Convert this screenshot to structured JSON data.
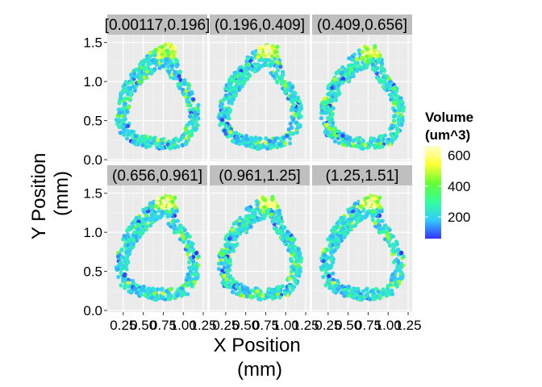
{
  "chart_data": {
    "type": "scatter",
    "title": "",
    "xlabel": "X Position\n(mm)",
    "ylabel": "Y Position\n(mm)",
    "xlim": [
      0.05,
      1.3
    ],
    "ylim": [
      -0.02,
      1.6
    ],
    "x_ticks": [
      "0.25",
      "0.50",
      "0.75",
      "1.00",
      "1.25"
    ],
    "x_tick_values": [
      0.25,
      0.5,
      0.75,
      1.0,
      1.25
    ],
    "y_ticks": [
      "0.0",
      "0.5",
      "1.0",
      "1.5"
    ],
    "y_tick_values": [
      0.0,
      0.5,
      1.0,
      1.5
    ],
    "facets": [
      {
        "label": "[0.00117,0.196]"
      },
      {
        "label": "(0.196,0.409]"
      },
      {
        "label": "(0.409,0.656]"
      },
      {
        "label": "(0.656,0.961]"
      },
      {
        "label": "(0.961,1.25]"
      },
      {
        "label": "(1.25,1.51]"
      }
    ],
    "legend": {
      "title": "Volume\n(um^3)",
      "ticks": [
        "200",
        "400",
        "600"
      ],
      "tick_values": [
        200,
        400,
        600
      ],
      "range": [
        60,
        660
      ],
      "colors": [
        "#3333ff",
        "#33ccff",
        "#33ff99",
        "#66ff33",
        "#ffff33",
        "#ffffcc"
      ],
      "placement": "right"
    },
    "grid": true,
    "colors": {
      "panel_bg": "#ebebeb",
      "strip_bg": "#bfbfbf",
      "grid_major": "#ffffff",
      "grid_minor": "#f5f5f5"
    },
    "ring_shape": {
      "description_points": [
        [
          0.82,
          1.48
        ],
        [
          0.68,
          1.45
        ],
        [
          0.53,
          1.32
        ],
        [
          0.38,
          1.15
        ],
        [
          0.25,
          0.95
        ],
        [
          0.17,
          0.72
        ],
        [
          0.16,
          0.5
        ],
        [
          0.22,
          0.32
        ],
        [
          0.38,
          0.2
        ],
        [
          0.6,
          0.14
        ],
        [
          0.85,
          0.14
        ],
        [
          1.05,
          0.2
        ],
        [
          1.18,
          0.4
        ],
        [
          1.2,
          0.68
        ],
        [
          1.12,
          0.9
        ],
        [
          0.98,
          1.08
        ],
        [
          0.92,
          1.28
        ],
        [
          0.9,
          1.45
        ]
      ],
      "inner_points": [
        [
          0.8,
          1.2
        ],
        [
          0.68,
          1.16
        ],
        [
          0.55,
          1.05
        ],
        [
          0.42,
          0.9
        ],
        [
          0.33,
          0.72
        ],
        [
          0.3,
          0.55
        ],
        [
          0.34,
          0.4
        ],
        [
          0.48,
          0.31
        ],
        [
          0.66,
          0.28
        ],
        [
          0.85,
          0.28
        ],
        [
          1.0,
          0.34
        ],
        [
          1.07,
          0.5
        ],
        [
          1.06,
          0.7
        ],
        [
          0.98,
          0.88
        ],
        [
          0.87,
          1.02
        ],
        [
          0.8,
          1.12
        ]
      ]
    }
  }
}
